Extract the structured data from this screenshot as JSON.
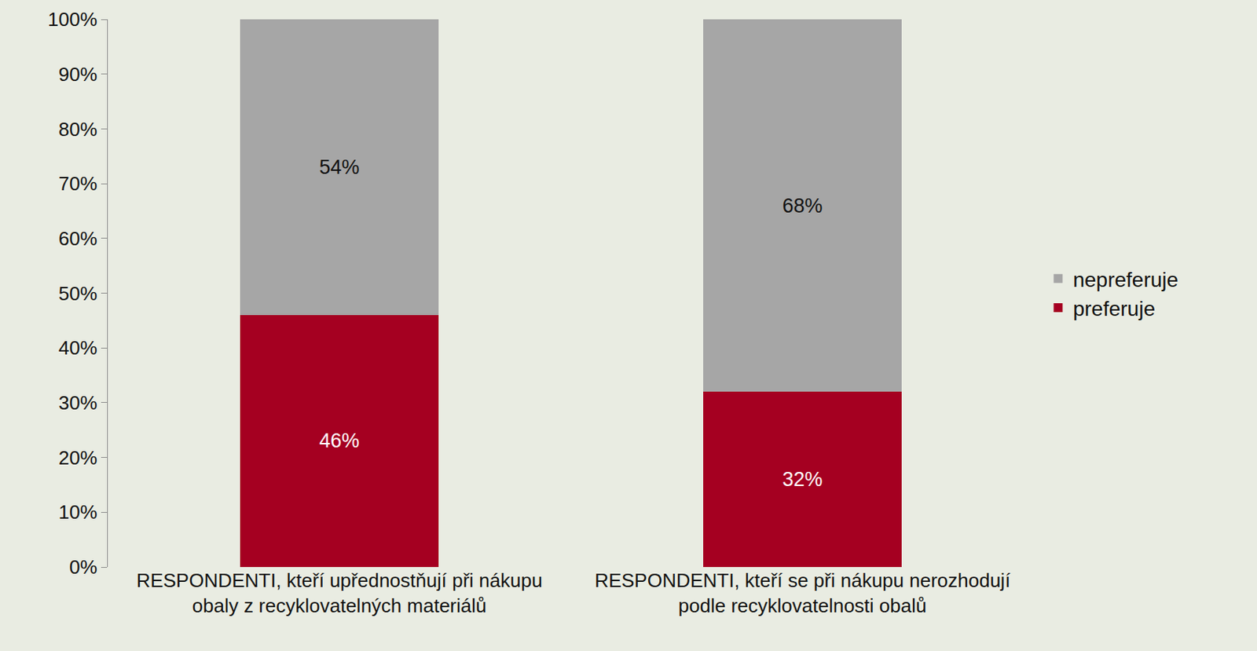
{
  "chart_data": {
    "type": "bar",
    "stacked": true,
    "data_labels": true,
    "grid": false,
    "legend": "right",
    "categories": [
      "RESPONDENTI, kteří upřednostňují při nákupu obaly z recyklovatelných materiálů",
      "RESPONDENTI, kteří se při nákupu nerozhodují podle recyklovatelnosti obalů"
    ],
    "series": [
      {
        "name": "preferuje",
        "color": "#a50021",
        "values": [
          46,
          32
        ],
        "value_labels": [
          "46%",
          "32%"
        ]
      },
      {
        "name": "nepreferuje",
        "color": "#a6a6a6",
        "values": [
          54,
          68
        ],
        "value_labels": [
          "54%",
          "68%"
        ]
      }
    ],
    "ylim": [
      0,
      100
    ],
    "yticks": [
      {
        "value": 0,
        "label": "0%"
      },
      {
        "value": 10,
        "label": "10%"
      },
      {
        "value": 20,
        "label": "20%"
      },
      {
        "value": 30,
        "label": "30%"
      },
      {
        "value": 40,
        "label": "40%"
      },
      {
        "value": 50,
        "label": "50%"
      },
      {
        "value": 60,
        "label": "60%"
      },
      {
        "value": 70,
        "label": "70%"
      },
      {
        "value": 80,
        "label": "80%"
      },
      {
        "value": 90,
        "label": "90%"
      },
      {
        "value": 100,
        "label": "100%"
      }
    ]
  }
}
